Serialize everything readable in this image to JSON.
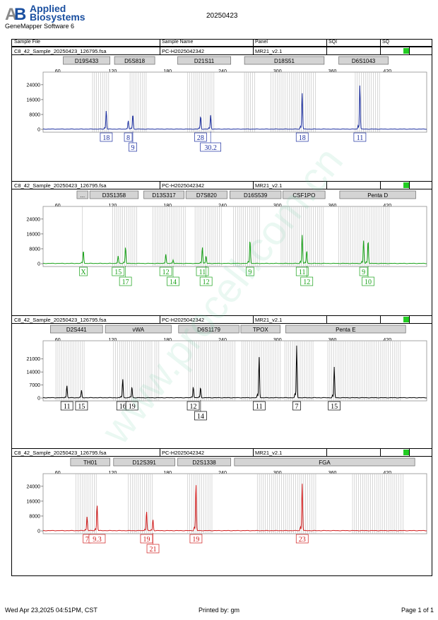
{
  "header": {
    "logo_line1": "Applied",
    "logo_line2": "Biosystems",
    "software": "GeneMapper Software 6",
    "date": "20250423"
  },
  "columns": [
    "Sample File",
    "Sample Name",
    "Panel",
    "SQI",
    "SQ"
  ],
  "footer": {
    "left": "Wed Apr 23,2025 04:51PM, CST",
    "center": "Printed by: gm",
    "right": "Page 1 of 1"
  },
  "watermark": "www.procell.com.cn",
  "colors": {
    "blue": "#1c2fa0",
    "green": "#17a117",
    "black": "#000000",
    "red": "#d11a1a",
    "status": "#22cc22",
    "bin": "#bdbdbd"
  },
  "chart_data": [
    {
      "type": "line",
      "dye": "blue",
      "sample_file": "C8_42_Sample_20250423_126795.fsa",
      "sample_name": "PC-H2025042342",
      "panel": "MR21_v2.1",
      "xlim": [
        44,
        463
      ],
      "xticks": [
        60,
        120,
        180,
        240,
        300,
        360,
        420
      ],
      "ylim": [
        0,
        28500
      ],
      "yticks": [
        0,
        8000,
        16000,
        24000
      ],
      "markers": [
        {
          "name": "D19S433",
          "start": 66,
          "end": 117
        },
        {
          "name": "D5S818",
          "start": 122,
          "end": 166
        },
        {
          "name": "D21S11",
          "start": 191,
          "end": 249
        },
        {
          "name": "D18S51",
          "start": 264,
          "end": 351
        },
        {
          "name": "D6S1043",
          "start": 367,
          "end": 421
        }
      ],
      "bins": [
        [
          98,
          116
        ],
        [
          139,
          158
        ],
        [
          202,
          232
        ],
        [
          264,
          276
        ],
        [
          293,
          343
        ],
        [
          385,
          412
        ]
      ],
      "peaks": [
        {
          "x": 113,
          "y": 10000
        },
        {
          "x": 137,
          "y": 4500
        },
        {
          "x": 142,
          "y": 8000
        },
        {
          "x": 216,
          "y": 7000
        },
        {
          "x": 227,
          "y": 7500
        },
        {
          "x": 327,
          "y": 19500
        },
        {
          "x": 390,
          "y": 24000
        }
      ],
      "labels": [
        {
          "text": "18",
          "x": 113,
          "row": 1
        },
        {
          "text": "8",
          "x": 137,
          "row": 1
        },
        {
          "text": "9",
          "x": 142,
          "row": 2
        },
        {
          "text": "28",
          "x": 216,
          "row": 1
        },
        {
          "text": "30.2",
          "x": 227,
          "row": 2
        },
        {
          "text": "18",
          "x": 327,
          "row": 1
        },
        {
          "text": "11",
          "x": 390,
          "row": 1
        }
      ]
    },
    {
      "type": "line",
      "dye": "green",
      "sample_file": "C8_42_Sample_20250423_126795.fsa",
      "sample_name": "PC-H2025042342",
      "panel": "MR21_v2.1",
      "xlim": [
        44,
        463
      ],
      "xticks": [
        60,
        120,
        180,
        240,
        300,
        360,
        420
      ],
      "ylim": [
        0,
        28500
      ],
      "yticks": [
        0,
        8000,
        16000,
        24000
      ],
      "markers": [
        {
          "name": "...",
          "start": 81,
          "end": 93
        },
        {
          "name": "D3S1358",
          "start": 95,
          "end": 148
        },
        {
          "name": "D13S317",
          "start": 154,
          "end": 198
        },
        {
          "name": "D7S820",
          "start": 200,
          "end": 245
        },
        {
          "name": "D16S539",
          "start": 248,
          "end": 304
        },
        {
          "name": "CSF1PO",
          "start": 306,
          "end": 352
        },
        {
          "name": "Penta D",
          "start": 368,
          "end": 451
        }
      ],
      "bins": [
        [
          87,
          89
        ],
        [
          120,
          148
        ],
        [
          164,
          200
        ],
        [
          210,
          240
        ],
        [
          252,
          282
        ],
        [
          304,
          352
        ],
        [
          367,
          423
        ]
      ],
      "peaks": [
        {
          "x": 88,
          "y": 7000
        },
        {
          "x": 126,
          "y": 4000
        },
        {
          "x": 134,
          "y": 9000
        },
        {
          "x": 178,
          "y": 5000
        },
        {
          "x": 186,
          "y": 2000
        },
        {
          "x": 218,
          "y": 9000
        },
        {
          "x": 222,
          "y": 4000
        },
        {
          "x": 270,
          "y": 13000
        },
        {
          "x": 327,
          "y": 15500
        },
        {
          "x": 332,
          "y": 7000
        },
        {
          "x": 394,
          "y": 12500
        },
        {
          "x": 399,
          "y": 12500
        }
      ],
      "labels": [
        {
          "text": "X",
          "x": 88,
          "row": 1
        },
        {
          "text": "15",
          "x": 126,
          "row": 1
        },
        {
          "text": "17",
          "x": 134,
          "row": 2
        },
        {
          "text": "12",
          "x": 178,
          "row": 1
        },
        {
          "text": "14",
          "x": 186,
          "row": 2
        },
        {
          "text": "11",
          "x": 218,
          "row": 1
        },
        {
          "text": "12",
          "x": 222,
          "row": 2
        },
        {
          "text": "9",
          "x": 270,
          "row": 1
        },
        {
          "text": "11",
          "x": 327,
          "row": 1
        },
        {
          "text": "12",
          "x": 332,
          "row": 2
        },
        {
          "text": "9",
          "x": 394,
          "row": 1
        },
        {
          "text": "10",
          "x": 399,
          "row": 2
        }
      ]
    },
    {
      "type": "line",
      "dye": "black",
      "sample_file": "C8_42_Sample_20250423_126795.fsa",
      "sample_name": "PC-H2025042342",
      "panel": "MR21_v2.1",
      "xlim": [
        44,
        463
      ],
      "xticks": [
        60,
        120,
        180,
        240,
        300,
        360,
        420
      ],
      "ylim": [
        0,
        28500
      ],
      "yticks": [
        0,
        7000,
        14000,
        21000
      ],
      "markers": [
        {
          "name": "D2S441",
          "start": 52,
          "end": 109
        },
        {
          "name": "vWA",
          "start": 112,
          "end": 184
        },
        {
          "name": "D6S1179",
          "start": 192,
          "end": 258
        },
        {
          "name": "TPOX",
          "start": 260,
          "end": 303
        },
        {
          "name": "Penta E",
          "start": 309,
          "end": 440
        }
      ],
      "bins": [
        [
          58,
          89
        ],
        [
          121,
          163
        ],
        [
          166,
          172
        ],
        [
          203,
          255
        ],
        [
          261,
          303
        ],
        [
          308,
          340
        ],
        [
          355,
          435
        ]
      ],
      "peaks": [
        {
          "x": 70,
          "y": 6500
        },
        {
          "x": 86,
          "y": 4000
        },
        {
          "x": 131,
          "y": 10000
        },
        {
          "x": 141,
          "y": 6000
        },
        {
          "x": 208,
          "y": 6000
        },
        {
          "x": 216,
          "y": 5500
        },
        {
          "x": 280,
          "y": 22000
        },
        {
          "x": 321,
          "y": 28000
        },
        {
          "x": 362,
          "y": 16500
        }
      ],
      "labels": [
        {
          "text": "11",
          "x": 70,
          "row": 1
        },
        {
          "text": "15",
          "x": 86,
          "row": 1
        },
        {
          "text": "16",
          "x": 131,
          "row": 1
        },
        {
          "text": "19",
          "x": 141,
          "row": 1
        },
        {
          "text": "12",
          "x": 208,
          "row": 1
        },
        {
          "text": "14",
          "x": 216,
          "row": 2
        },
        {
          "text": "11",
          "x": 280,
          "row": 1
        },
        {
          "text": "7",
          "x": 321,
          "row": 1
        },
        {
          "text": "15",
          "x": 362,
          "row": 1
        }
      ]
    },
    {
      "type": "line",
      "dye": "red",
      "sample_file": "C8_42_Sample_20250423_126795.fsa",
      "sample_name": "PC-H2025042342",
      "panel": "MR21_v2.1",
      "xlim": [
        44,
        463
      ],
      "xticks": [
        60,
        120,
        180,
        240,
        300,
        360,
        420
      ],
      "ylim": [
        0,
        28500
      ],
      "yticks": [
        0,
        8000,
        16000,
        24000
      ],
      "markers": [
        {
          "name": "TH01",
          "start": 74,
          "end": 117
        },
        {
          "name": "D12S391",
          "start": 121,
          "end": 188
        },
        {
          "name": "D2S1338",
          "start": 191,
          "end": 249
        },
        {
          "name": "FGA",
          "start": 253,
          "end": 450
        }
      ],
      "bins": [
        [
          80,
          103
        ],
        [
          137,
          165
        ],
        [
          202,
          230
        ],
        [
          278,
          342
        ],
        [
          382,
          438
        ]
      ],
      "peaks": [
        {
          "x": 92,
          "y": 7500
        },
        {
          "x": 103,
          "y": 14000
        },
        {
          "x": 157,
          "y": 10500
        },
        {
          "x": 164,
          "y": 6000
        },
        {
          "x": 211,
          "y": 25500
        },
        {
          "x": 327,
          "y": 25500
        }
      ],
      "labels": [
        {
          "text": "7",
          "x": 92,
          "row": 1
        },
        {
          "text": "9.3",
          "x": 103,
          "row": 1
        },
        {
          "text": "19",
          "x": 157,
          "row": 1
        },
        {
          "text": "21",
          "x": 164,
          "row": 2
        },
        {
          "text": "19",
          "x": 211,
          "row": 1
        },
        {
          "text": "23",
          "x": 327,
          "row": 1
        }
      ]
    }
  ]
}
